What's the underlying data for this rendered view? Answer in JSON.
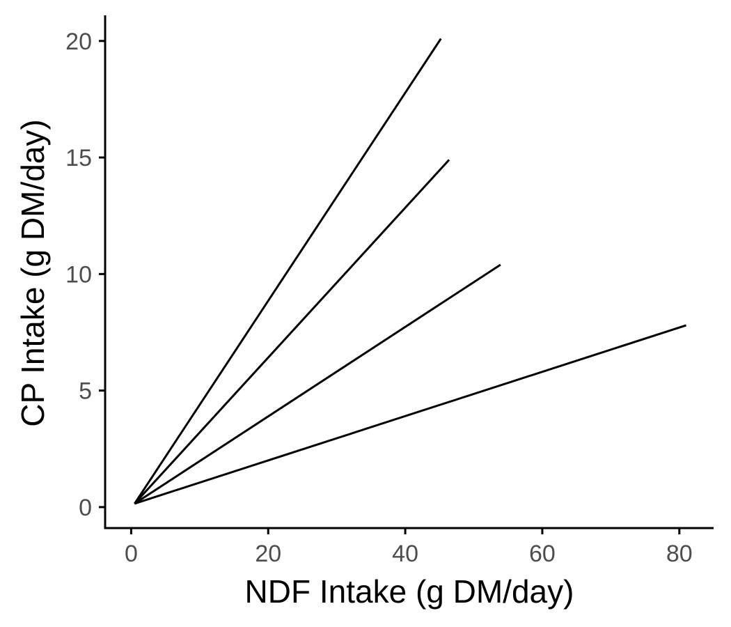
{
  "chart_data": {
    "type": "line",
    "title": "",
    "xlabel": "NDF Intake (g DM/day)",
    "ylabel": "CP Intake (g DM/day)",
    "xlim": [
      -3.8,
      85.0
    ],
    "ylim": [
      -0.9,
      21.1
    ],
    "x_ticks": [
      0,
      20,
      40,
      60,
      80
    ],
    "y_ticks": [
      0,
      5,
      10,
      15,
      20
    ],
    "grid": false,
    "legend": "none",
    "colors": {
      "line": "#000000",
      "axis": "#000000",
      "tick_label": "#4d4d4d",
      "background": "#ffffff"
    },
    "series": [
      {
        "x": [
          0.5,
          45.2
        ],
        "y": [
          0.15,
          20.1
        ]
      },
      {
        "x": [
          0.5,
          46.4
        ],
        "y": [
          0.15,
          14.9
        ]
      },
      {
        "x": [
          0.5,
          53.9
        ],
        "y": [
          0.15,
          10.4
        ]
      },
      {
        "x": [
          0.5,
          81.0
        ],
        "y": [
          0.15,
          7.8
        ]
      }
    ]
  }
}
